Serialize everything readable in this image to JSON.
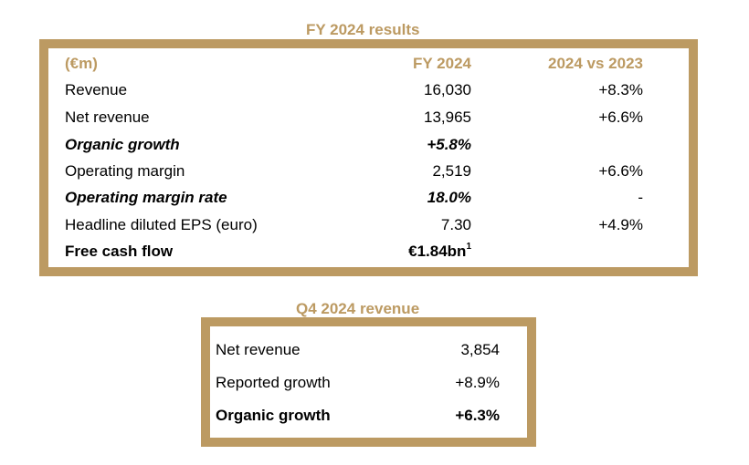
{
  "fy_table": {
    "title": "FY 2024 results",
    "header": {
      "label": "(€m)",
      "fy": "FY 2024",
      "vs": "2024 vs 2023"
    },
    "rows": [
      {
        "label": "Revenue",
        "fy": "16,030",
        "vs": "+8.3%"
      },
      {
        "label": "Net revenue",
        "fy": "13,965",
        "vs": "+6.6%"
      },
      {
        "label": "Organic growth",
        "fy": "+5.8%",
        "vs": ""
      },
      {
        "label": "Operating margin",
        "fy": "2,519",
        "vs": "+6.6%"
      },
      {
        "label": "Operating margin rate",
        "fy": "18.0%",
        "vs": "-"
      },
      {
        "label": "Headline diluted EPS (euro)",
        "fy": "7.30",
        "vs": "+4.9%"
      },
      {
        "label": "Free cash flow",
        "fy": "€1.84bn",
        "fy_note": "1",
        "vs": ""
      }
    ]
  },
  "q4_table": {
    "title": "Q4 2024 revenue",
    "rows": [
      {
        "label": "Net revenue",
        "value": "3,854"
      },
      {
        "label": "Reported growth",
        "value": "+8.9%"
      },
      {
        "label": "Organic growth",
        "value": "+6.3%"
      }
    ]
  },
  "colors": {
    "accent": "#bc9a62",
    "text": "#000000",
    "background": "#ffffff"
  }
}
